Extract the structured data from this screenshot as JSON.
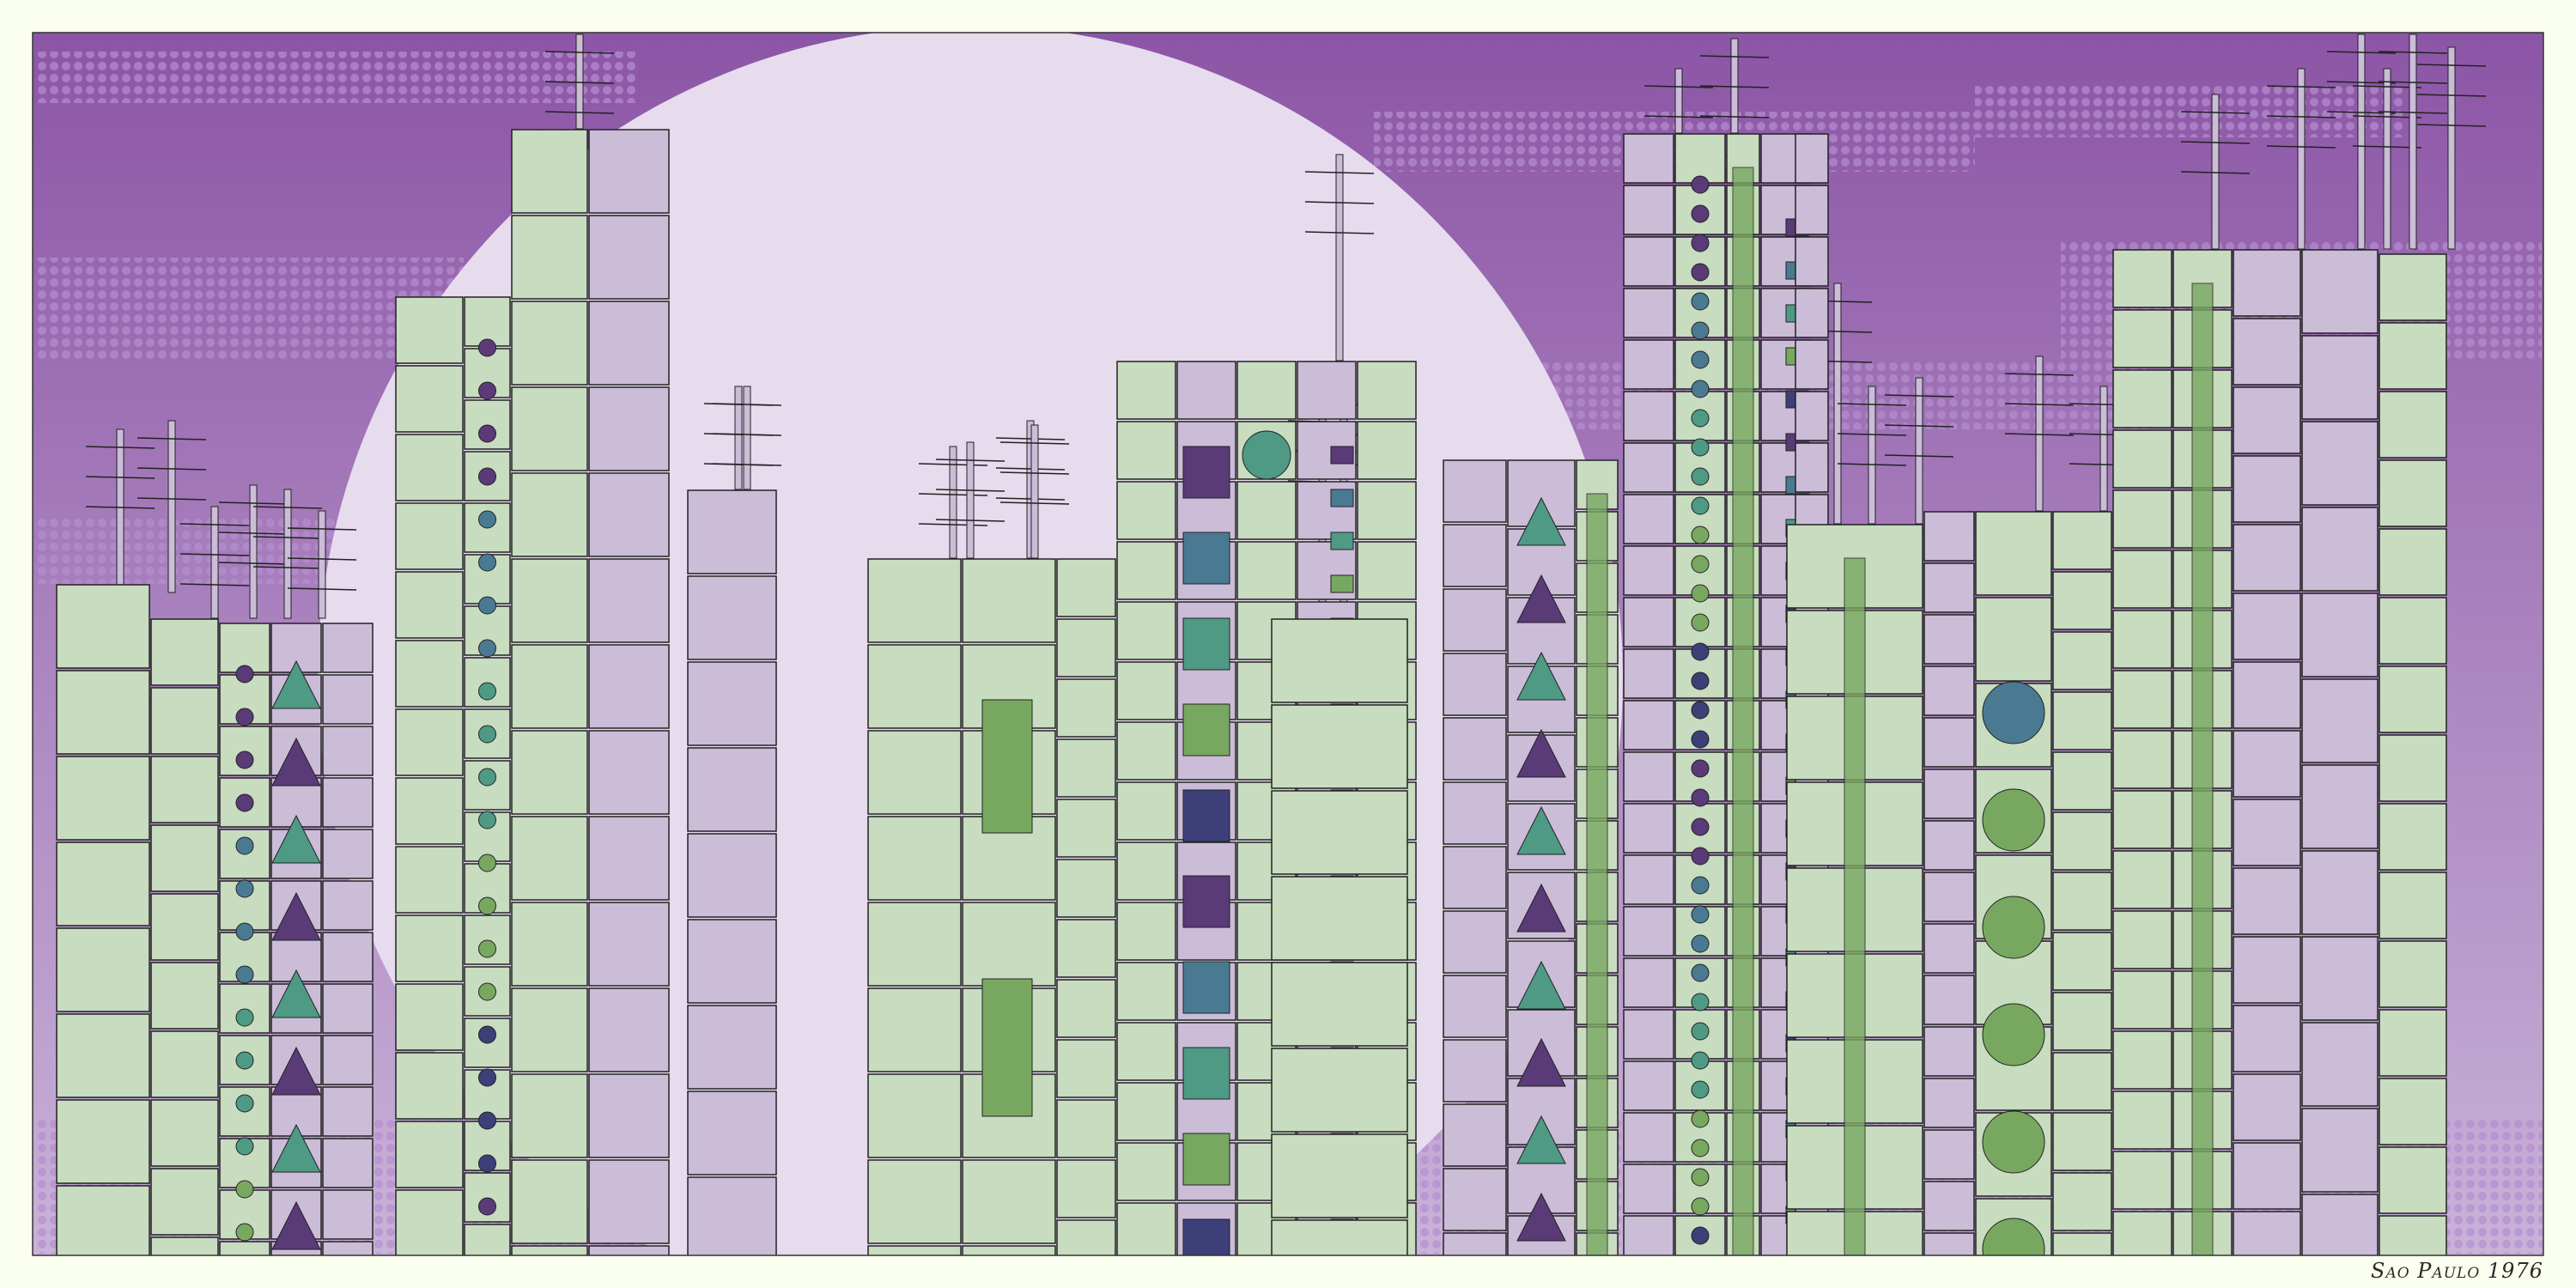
{
  "caption": "Sao Paulo 1976",
  "colors": {
    "paper": "#fbfff0",
    "sky_top": "#8c55a6",
    "sky_bottom": "#c9b2d8",
    "moon": "#e6dcee",
    "dots": "#b58ed0",
    "building_green": "#c8dcc0",
    "building_purple": "#cbbcd8",
    "accent_purple": "#5b3a78",
    "accent_blue": "#4a7a92",
    "accent_teal": "#4f9a84",
    "accent_green": "#78a860",
    "accent_navy": "#3d3f78",
    "outline": "#222222"
  }
}
